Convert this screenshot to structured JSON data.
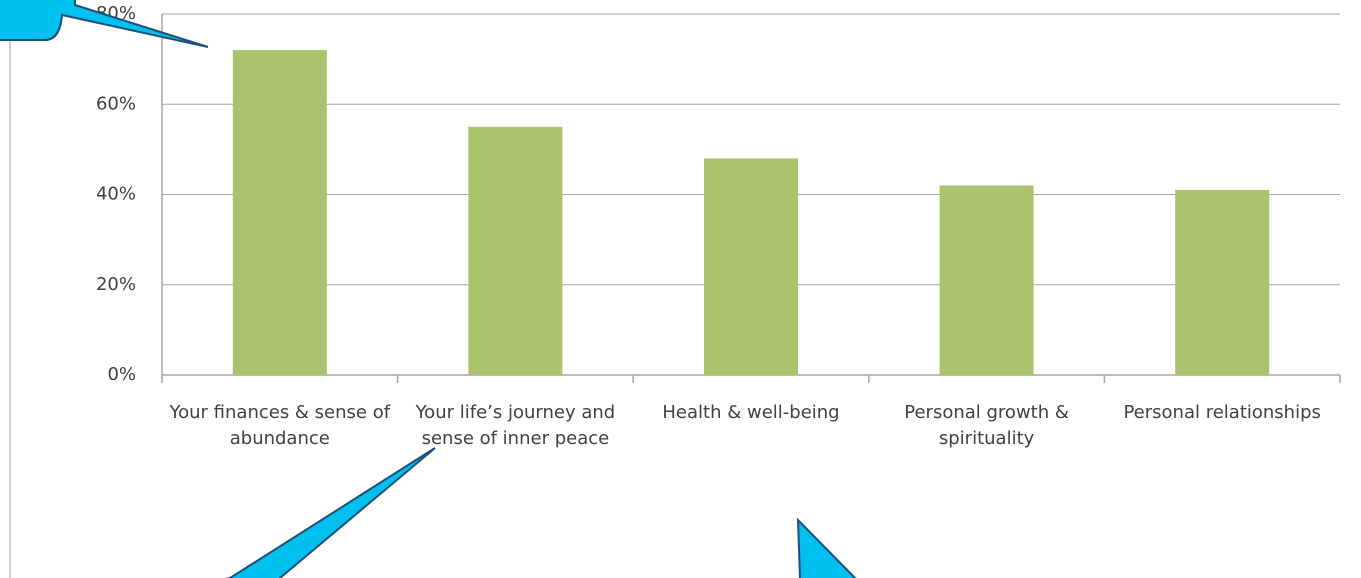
{
  "chart_data": {
    "type": "bar",
    "categories": [
      "Your finances & sense of abundance",
      "Your life’s journey and sense of inner peace",
      "Health & well-being",
      "Personal growth & spirituality",
      "Personal relationships"
    ],
    "values": [
      72,
      55,
      48,
      42,
      41
    ],
    "color": "#a9c46c",
    "ylim": [
      0,
      80
    ],
    "yticks": [
      {
        "value": 0,
        "label": "0%"
      },
      {
        "value": 20,
        "label": "20%"
      },
      {
        "value": 40,
        "label": "40%"
      },
      {
        "value": 60,
        "label": "60%"
      },
      {
        "value": 80,
        "label": "80%"
      }
    ],
    "grid": true
  }
}
